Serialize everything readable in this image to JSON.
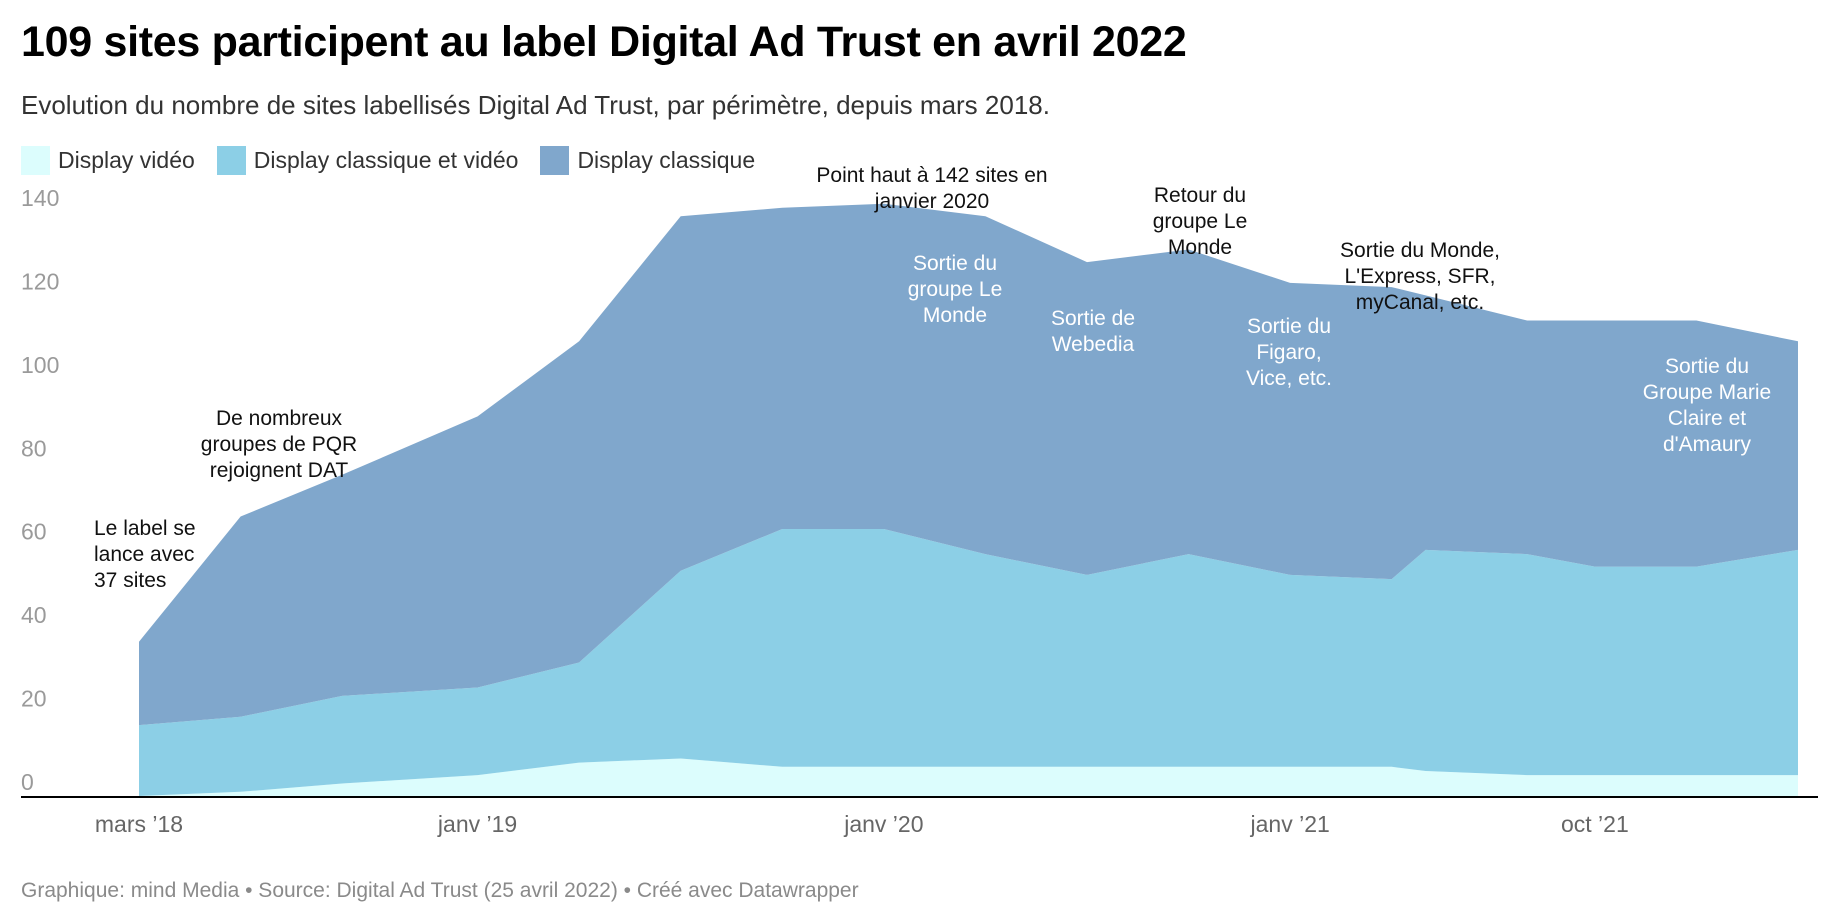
{
  "header": {
    "title": "109 sites participent au label Digital Ad Trust en avril 2022",
    "subtitle": "Evolution du nombre de sites labellisés Digital Ad Trust, par périmètre, depuis mars 2018."
  },
  "footer": {
    "text": "Graphique: mind Media • Source: Digital Ad Trust (25 avril 2022) • Créé avec Datawrapper"
  },
  "colors": {
    "display_video": "#dcfdfd",
    "display_classique_et_video": "#8ccfe6",
    "display_classique": "#80a7cc",
    "axis": "#000000"
  },
  "chart_data": {
    "type": "area",
    "stacked": true,
    "title": "109 sites participent au label Digital Ad Trust en avril 2022",
    "subtitle": "Evolution du nombre de sites labellisés Digital Ad Trust, par périmètre, depuis mars 2018.",
    "x": [
      "2018-03",
      "2018-06",
      "2018-09",
      "2019-01",
      "2019-04",
      "2019-07",
      "2019-10",
      "2020-01",
      "2020-04",
      "2020-07",
      "2020-10",
      "2021-01",
      "2021-04",
      "2021-05",
      "2021-08",
      "2021-10",
      "2022-01",
      "2022-04"
    ],
    "series": [
      {
        "name": "Display vidéo",
        "values": [
          0,
          1,
          3,
          5,
          8,
          9,
          7,
          7,
          7,
          7,
          7,
          7,
          7,
          6,
          5,
          5,
          5,
          5
        ]
      },
      {
        "name": "Display classique et vidéo",
        "values": [
          17,
          18,
          21,
          21,
          24,
          45,
          57,
          57,
          51,
          46,
          51,
          46,
          45,
          53,
          53,
          50,
          50,
          54
        ]
      },
      {
        "name": "Display classique",
        "values": [
          20,
          48,
          53,
          65,
          77,
          85,
          77,
          78,
          81,
          75,
          73,
          70,
          70,
          61,
          56,
          59,
          59,
          50
        ]
      }
    ],
    "ylim": [
      0,
      145
    ],
    "yticks": [
      0,
      20,
      40,
      60,
      80,
      100,
      120,
      140
    ],
    "xticks": [
      {
        "label": "mars ’18",
        "x": "2018-03"
      },
      {
        "label": "janv ’19",
        "x": "2019-01"
      },
      {
        "label": "janv ’20",
        "x": "2020-01"
      },
      {
        "label": "janv ’21",
        "x": "2021-01"
      },
      {
        "label": "oct ’21",
        "x": "2021-10"
      }
    ],
    "legend_position": "top-left",
    "grid": false,
    "annotations": [
      {
        "style": "dark",
        "lines": [
          "Le label se",
          "lance avec",
          "37 sites"
        ]
      },
      {
        "style": "dark",
        "lines": [
          "De nombreux",
          "groupes de PQR",
          "rejoignent DAT"
        ]
      },
      {
        "style": "dark",
        "lines": [
          "Point haut à 142 sites en",
          "janvier 2020"
        ]
      },
      {
        "style": "light",
        "lines": [
          "Sortie du",
          "groupe Le",
          "Monde"
        ]
      },
      {
        "style": "light",
        "lines": [
          "Sortie de",
          "Webedia"
        ]
      },
      {
        "style": "dark",
        "lines": [
          "Retour du",
          "groupe Le",
          "Monde"
        ]
      },
      {
        "style": "light",
        "lines": [
          "Sortie du",
          "Figaro,",
          "Vice, etc."
        ]
      },
      {
        "style": "dark",
        "lines": [
          "Sortie du Monde,",
          "L'Express, SFR,",
          "myCanal, etc."
        ]
      },
      {
        "style": "light",
        "lines": [
          "Sortie du",
          "Groupe Marie",
          "Claire et",
          "d'Amaury"
        ]
      }
    ]
  }
}
